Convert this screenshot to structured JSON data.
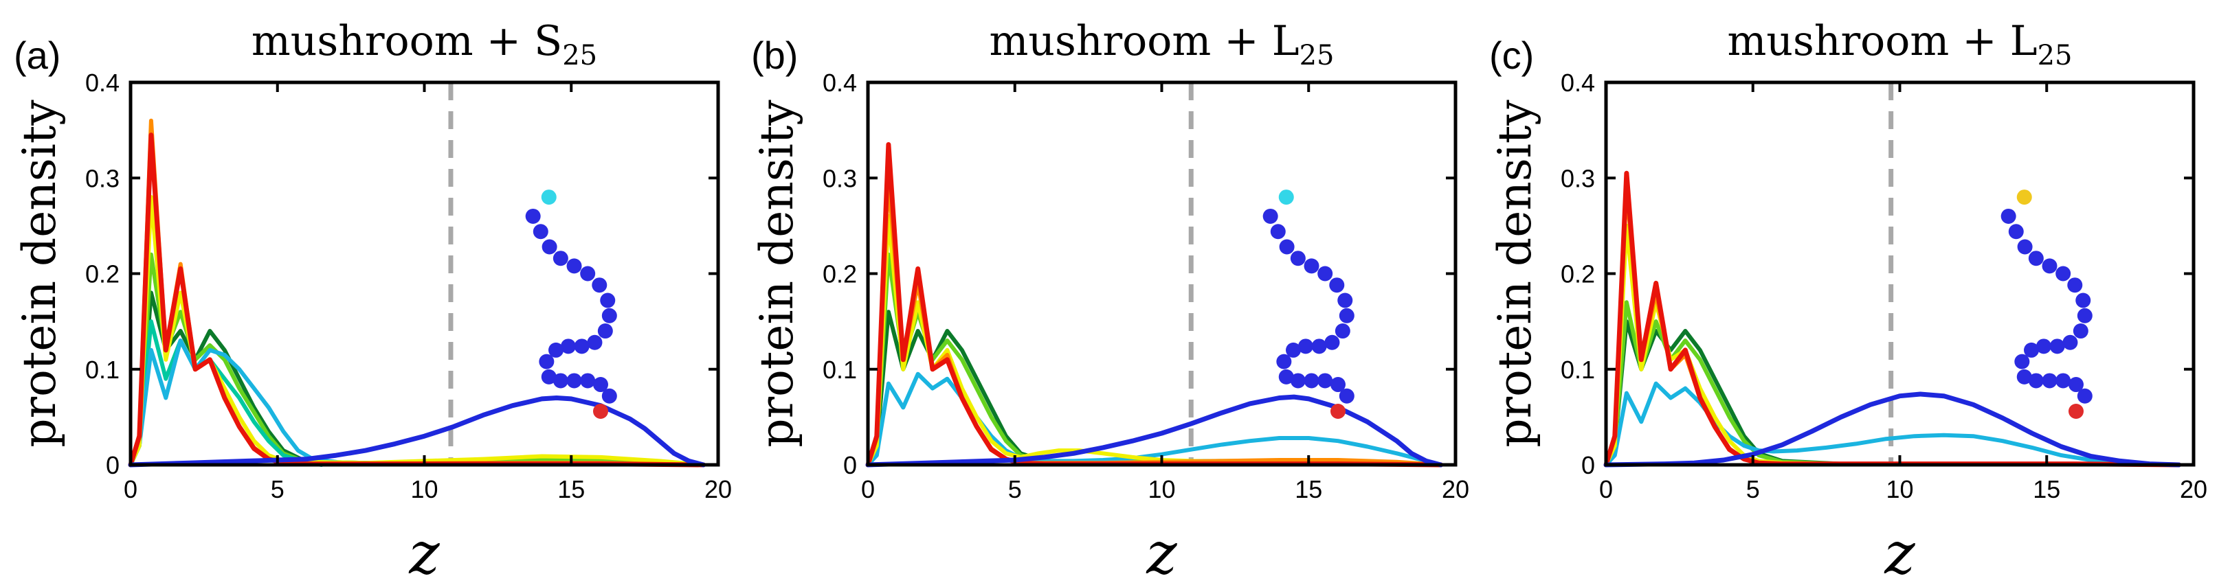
{
  "chart_data": [
    {
      "type": "line",
      "panel_label": "(a)",
      "title": "mushroom + S",
      "title_sub": "25",
      "xlabel": "z",
      "ylabel": "protein density",
      "xlim": [
        0,
        20
      ],
      "ylim": [
        0,
        0.4
      ],
      "xticks": [
        "0",
        "5",
        "10",
        "15",
        "20"
      ],
      "yticks": [
        "0",
        "0.1",
        "0.2",
        "0.3",
        "0.4"
      ],
      "vline_x": 10.9,
      "inset": {
        "top_bead_color": "#33d6e8",
        "chain_color": "#2b2be0",
        "bottom_bead_color": "#e02b2b"
      },
      "series": [
        {
          "color": "#0b7a2a",
          "x": [
            0,
            0.3,
            0.7,
            1.2,
            1.7,
            2.2,
            2.7,
            3.2,
            3.7,
            4.2,
            4.7,
            5.2,
            5.8,
            6.5,
            8,
            10,
            12,
            14,
            16,
            18,
            19.5
          ],
          "y": [
            0,
            0.02,
            0.18,
            0.12,
            0.14,
            0.11,
            0.14,
            0.12,
            0.09,
            0.06,
            0.035,
            0.015,
            0.006,
            0.003,
            0.002,
            0.002,
            0.002,
            0.004,
            0.003,
            0.002,
            0
          ]
        },
        {
          "color": "#66d21e",
          "x": [
            0,
            0.3,
            0.7,
            1.2,
            1.7,
            2.2,
            2.7,
            3.2,
            3.7,
            4.2,
            4.7,
            5.2,
            5.8,
            6.5,
            8,
            10,
            12,
            14,
            16,
            18,
            19.5
          ],
          "y": [
            0,
            0.02,
            0.22,
            0.12,
            0.16,
            0.11,
            0.125,
            0.11,
            0.08,
            0.055,
            0.03,
            0.012,
            0.005,
            0.003,
            0.002,
            0.003,
            0.004,
            0.006,
            0.005,
            0.003,
            0
          ]
        },
        {
          "color": "#00c8a0",
          "x": [
            0,
            0.3,
            0.7,
            1.2,
            1.7,
            2.2,
            2.7,
            3.2,
            3.7,
            4.2,
            4.7,
            5.2,
            5.8,
            6.5
          ],
          "y": [
            0,
            0.02,
            0.15,
            0.09,
            0.13,
            0.1,
            0.11,
            0.09,
            0.07,
            0.045,
            0.025,
            0.01,
            0.004,
            0
          ]
        },
        {
          "color": "#1ab4e0",
          "x": [
            0,
            0.3,
            0.7,
            1.2,
            1.7,
            2.2,
            2.7,
            3.2,
            3.7,
            4.2,
            4.7,
            5.2,
            5.7,
            6.2,
            7
          ],
          "y": [
            0,
            0.02,
            0.12,
            0.07,
            0.13,
            0.1,
            0.12,
            0.115,
            0.1,
            0.08,
            0.06,
            0.035,
            0.015,
            0.006,
            0.003
          ]
        },
        {
          "color": "#f0f000",
          "x": [
            0,
            0.3,
            0.7,
            1.2,
            1.7,
            2.2,
            2.7,
            3.2,
            3.7,
            4.2,
            4.7,
            5.2,
            6,
            8,
            10,
            12,
            14,
            16,
            18,
            19.5
          ],
          "y": [
            0,
            0.02,
            0.28,
            0.11,
            0.18,
            0.1,
            0.11,
            0.08,
            0.05,
            0.025,
            0.01,
            0.004,
            0.003,
            0.002,
            0.004,
            0.006,
            0.009,
            0.008,
            0.004,
            0
          ]
        },
        {
          "color": "#ff8c00",
          "x": [
            0,
            0.3,
            0.7,
            1.2,
            1.7,
            2.2,
            2.7,
            3.2,
            3.7,
            4.2,
            4.7,
            5.2,
            6,
            8,
            12,
            16,
            19.5
          ],
          "y": [
            0,
            0.03,
            0.36,
            0.12,
            0.21,
            0.1,
            0.11,
            0.07,
            0.04,
            0.018,
            0.006,
            0.002,
            0.001,
            0.001,
            0.002,
            0.002,
            0
          ]
        },
        {
          "color": "#e8140a",
          "x": [
            0,
            0.3,
            0.7,
            1.2,
            1.7,
            2.2,
            2.7,
            3.2,
            3.7,
            4.2,
            4.7,
            5.2,
            6,
            8,
            12,
            16,
            19.5
          ],
          "y": [
            0,
            0.03,
            0.345,
            0.12,
            0.205,
            0.1,
            0.11,
            0.07,
            0.04,
            0.017,
            0.006,
            0.002,
            0.001,
            0.001,
            0.001,
            0.001,
            0
          ]
        },
        {
          "color": "#1e28dc",
          "x": [
            0,
            2,
            4,
            6,
            7,
            8,
            9,
            10,
            11,
            12,
            13,
            14,
            14.5,
            15,
            16,
            17,
            17.5,
            18,
            18.5,
            19,
            19.5
          ],
          "y": [
            0,
            0.002,
            0.004,
            0.006,
            0.01,
            0.015,
            0.022,
            0.03,
            0.04,
            0.052,
            0.062,
            0.069,
            0.07,
            0.069,
            0.062,
            0.048,
            0.038,
            0.025,
            0.012,
            0.004,
            0
          ]
        }
      ]
    },
    {
      "type": "line",
      "panel_label": "(b)",
      "title": "mushroom + L",
      "title_sub": "25",
      "xlabel": "z",
      "ylabel": "protein density",
      "xlim": [
        0,
        20
      ],
      "ylim": [
        0,
        0.4
      ],
      "xticks": [
        "0",
        "5",
        "10",
        "15",
        "20"
      ],
      "yticks": [
        "0",
        "0.1",
        "0.2",
        "0.3",
        "0.4"
      ],
      "vline_x": 11.0,
      "inset": {
        "top_bead_color": "#33d6e8",
        "chain_color": "#2b2be0",
        "bottom_bead_color": "#e02b2b"
      },
      "series": [
        {
          "color": "#0b7a2a",
          "x": [
            0,
            0.3,
            0.7,
            1.2,
            1.7,
            2.2,
            2.7,
            3.2,
            3.7,
            4.2,
            4.7,
            5.2,
            6,
            8,
            12,
            16,
            19.5
          ],
          "y": [
            0,
            0.02,
            0.16,
            0.1,
            0.14,
            0.11,
            0.14,
            0.12,
            0.09,
            0.06,
            0.03,
            0.012,
            0.004,
            0.002,
            0.002,
            0.002,
            0
          ]
        },
        {
          "color": "#66d21e",
          "x": [
            0,
            0.3,
            0.7,
            1.2,
            1.7,
            2.2,
            2.7,
            3.2,
            3.7,
            4.2,
            4.7,
            5.2,
            6,
            8,
            12,
            16,
            19.5
          ],
          "y": [
            0,
            0.02,
            0.22,
            0.11,
            0.16,
            0.11,
            0.13,
            0.11,
            0.08,
            0.05,
            0.025,
            0.01,
            0.004,
            0.003,
            0.004,
            0.004,
            0
          ]
        },
        {
          "color": "#1ab4e0",
          "x": [
            0,
            0.3,
            0.7,
            1.2,
            1.7,
            2.2,
            2.7,
            3.2,
            3.7,
            4.2,
            4.7,
            5.2,
            6,
            7,
            8,
            9,
            10,
            11,
            12,
            13,
            14,
            15,
            16,
            17,
            18,
            19,
            19.5
          ],
          "y": [
            0,
            0.01,
            0.085,
            0.06,
            0.095,
            0.08,
            0.09,
            0.07,
            0.05,
            0.03,
            0.015,
            0.007,
            0.004,
            0.004,
            0.005,
            0.007,
            0.011,
            0.016,
            0.021,
            0.025,
            0.028,
            0.028,
            0.025,
            0.019,
            0.012,
            0.004,
            0
          ]
        },
        {
          "color": "#f0f000",
          "x": [
            0,
            0.3,
            0.7,
            1.2,
            1.7,
            2.2,
            2.7,
            3.2,
            3.7,
            4.2,
            4.7,
            5.2,
            5.8,
            6.5,
            7.2,
            8,
            9,
            10,
            12,
            14,
            16,
            18,
            19.5
          ],
          "y": [
            0,
            0.02,
            0.26,
            0.1,
            0.17,
            0.1,
            0.12,
            0.08,
            0.05,
            0.025,
            0.012,
            0.008,
            0.012,
            0.015,
            0.015,
            0.012,
            0.008,
            0.005,
            0.003,
            0.003,
            0.003,
            0.002,
            0
          ]
        },
        {
          "color": "#ff8c00",
          "x": [
            0,
            0.3,
            0.7,
            1.2,
            1.7,
            2.2,
            2.7,
            3.2,
            3.7,
            4.2,
            4.7,
            5.2,
            6,
            8,
            10,
            12,
            14,
            16,
            18,
            19.5
          ],
          "y": [
            0,
            0.03,
            0.3,
            0.11,
            0.19,
            0.1,
            0.115,
            0.07,
            0.04,
            0.017,
            0.006,
            0.002,
            0.002,
            0.002,
            0.003,
            0.004,
            0.005,
            0.005,
            0.003,
            0
          ]
        },
        {
          "color": "#e8140a",
          "x": [
            0,
            0.3,
            0.7,
            1.2,
            1.7,
            2.2,
            2.7,
            3.2,
            3.7,
            4.2,
            4.7,
            5.2,
            6,
            8,
            12,
            16,
            19.5
          ],
          "y": [
            0,
            0.03,
            0.335,
            0.11,
            0.205,
            0.1,
            0.11,
            0.07,
            0.04,
            0.016,
            0.006,
            0.002,
            0.001,
            0.001,
            0.001,
            0.001,
            0
          ]
        },
        {
          "color": "#1e28dc",
          "x": [
            0,
            2,
            4,
            5,
            6,
            7,
            8,
            9,
            10,
            11,
            12,
            13,
            14,
            14.5,
            15,
            16,
            17,
            18,
            18.5,
            19,
            19.5
          ],
          "y": [
            0,
            0.002,
            0.004,
            0.005,
            0.008,
            0.012,
            0.018,
            0.025,
            0.033,
            0.043,
            0.054,
            0.064,
            0.07,
            0.071,
            0.069,
            0.06,
            0.045,
            0.025,
            0.012,
            0.004,
            0
          ]
        }
      ]
    },
    {
      "type": "line",
      "panel_label": "(c)",
      "title": "mushroom + L",
      "title_sub": "25",
      "xlabel": "z",
      "ylabel": "protein density",
      "xlim": [
        0,
        20
      ],
      "ylim": [
        0,
        0.4
      ],
      "xticks": [
        "0",
        "5",
        "10",
        "15",
        "20"
      ],
      "yticks": [
        "0",
        "0.1",
        "0.2",
        "0.3",
        "0.4"
      ],
      "vline_x": 9.7,
      "inset": {
        "top_bead_color": "#f0c81e",
        "chain_color": "#2b2be0",
        "bottom_bead_color": "#e02b2b"
      },
      "series": [
        {
          "color": "#0b7a2a",
          "x": [
            0,
            0.3,
            0.7,
            1.2,
            1.7,
            2.2,
            2.7,
            3.2,
            3.7,
            4.2,
            4.7,
            5.2,
            6,
            8,
            12,
            16,
            19.5
          ],
          "y": [
            0,
            0.02,
            0.15,
            0.1,
            0.14,
            0.12,
            0.14,
            0.12,
            0.09,
            0.06,
            0.03,
            0.012,
            0.004,
            0.001,
            0.001,
            0.001,
            0
          ]
        },
        {
          "color": "#66d21e",
          "x": [
            0,
            0.3,
            0.7,
            1.2,
            1.7,
            2.2,
            2.7,
            3.2,
            3.7,
            4.2,
            4.7,
            5.2,
            6,
            8,
            12,
            16,
            19.5
          ],
          "y": [
            0,
            0.02,
            0.17,
            0.1,
            0.15,
            0.11,
            0.13,
            0.11,
            0.08,
            0.05,
            0.025,
            0.01,
            0.003,
            0.001,
            0.001,
            0.001,
            0
          ]
        },
        {
          "color": "#1ab4e0",
          "x": [
            0,
            0.3,
            0.7,
            1.2,
            1.7,
            2.2,
            2.7,
            3.2,
            3.7,
            4.2,
            4.7,
            5.2,
            5.7,
            6.5,
            7.5,
            8.5,
            9.5,
            10.5,
            11.5,
            12.5,
            13.5,
            14.5,
            15.5,
            16.5,
            17.5,
            18.5,
            19.5
          ],
          "y": [
            0,
            0.01,
            0.075,
            0.045,
            0.085,
            0.07,
            0.08,
            0.065,
            0.045,
            0.03,
            0.02,
            0.015,
            0.014,
            0.015,
            0.018,
            0.022,
            0.027,
            0.03,
            0.031,
            0.03,
            0.025,
            0.018,
            0.01,
            0.005,
            0.002,
            0.001,
            0
          ]
        },
        {
          "color": "#f0f000",
          "x": [
            0,
            0.3,
            0.7,
            1.2,
            1.7,
            2.2,
            2.7,
            3.2,
            3.7,
            4.2,
            4.7,
            5.2,
            6,
            8,
            12,
            16,
            19.5
          ],
          "y": [
            0,
            0.02,
            0.25,
            0.1,
            0.17,
            0.11,
            0.12,
            0.08,
            0.05,
            0.025,
            0.01,
            0.004,
            0.002,
            0.001,
            0.001,
            0.001,
            0
          ]
        },
        {
          "color": "#ff8c00",
          "x": [
            0,
            0.3,
            0.7,
            1.2,
            1.7,
            2.2,
            2.7,
            3.2,
            3.7,
            4.2,
            4.7,
            5.2,
            6,
            8,
            12,
            16,
            19.5
          ],
          "y": [
            0,
            0.03,
            0.29,
            0.11,
            0.18,
            0.1,
            0.115,
            0.07,
            0.04,
            0.017,
            0.006,
            0.002,
            0.001,
            0.001,
            0.001,
            0.001,
            0
          ]
        },
        {
          "color": "#e8140a",
          "x": [
            0,
            0.3,
            0.7,
            1.2,
            1.7,
            2.2,
            2.7,
            3.2,
            3.7,
            4.2,
            4.7,
            5.2,
            6,
            8,
            12,
            16,
            19.5
          ],
          "y": [
            0,
            0.03,
            0.305,
            0.11,
            0.19,
            0.1,
            0.12,
            0.07,
            0.04,
            0.016,
            0.006,
            0.002,
            0.001,
            0.001,
            0.001,
            0.001,
            0
          ]
        },
        {
          "color": "#1e28dc",
          "x": [
            0,
            2,
            3,
            4,
            5,
            6,
            7,
            8,
            9,
            10,
            10.7,
            11.5,
            12.5,
            13.5,
            14.5,
            15.5,
            16.5,
            17.5,
            18.5,
            19.5
          ],
          "y": [
            0,
            0.001,
            0.002,
            0.005,
            0.011,
            0.021,
            0.035,
            0.05,
            0.063,
            0.072,
            0.074,
            0.072,
            0.063,
            0.049,
            0.033,
            0.019,
            0.009,
            0.004,
            0.001,
            0
          ]
        }
      ]
    }
  ]
}
